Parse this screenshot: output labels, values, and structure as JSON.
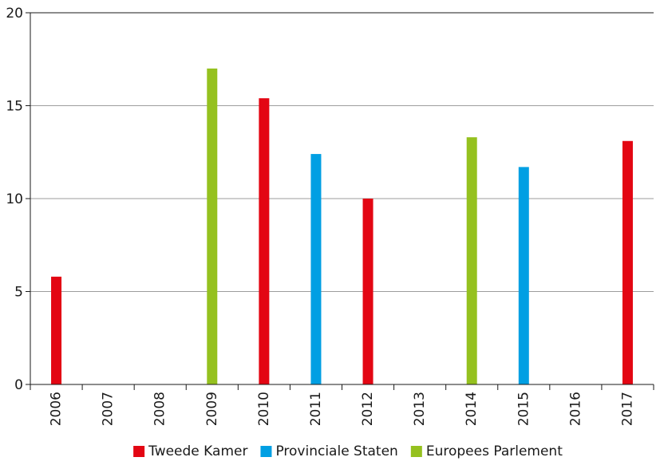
{
  "chart_data": {
    "type": "bar",
    "title": "",
    "xlabel": "",
    "ylabel": "",
    "ylim": [
      0,
      20
    ],
    "yticks": [
      0,
      5,
      10,
      15,
      20
    ],
    "grid": true,
    "legend_position": "bottom",
    "categories": [
      "2006",
      "2007",
      "2008",
      "2009",
      "2010",
      "2011",
      "2012",
      "2013",
      "2014",
      "2015",
      "2016",
      "2017"
    ],
    "series": [
      {
        "name": "Tweede Kamer",
        "color": "#e30613",
        "values": [
          5.8,
          null,
          null,
          null,
          15.4,
          null,
          10.0,
          null,
          null,
          null,
          null,
          13.1
        ]
      },
      {
        "name": "Provinciale Staten",
        "color": "#009fe3",
        "values": [
          null,
          null,
          null,
          null,
          null,
          12.4,
          null,
          null,
          null,
          11.7,
          null,
          null
        ]
      },
      {
        "name": "Europees Parlement",
        "color": "#95c11f",
        "values": [
          null,
          null,
          null,
          17.0,
          null,
          null,
          null,
          null,
          13.3,
          null,
          null,
          null
        ]
      }
    ]
  }
}
